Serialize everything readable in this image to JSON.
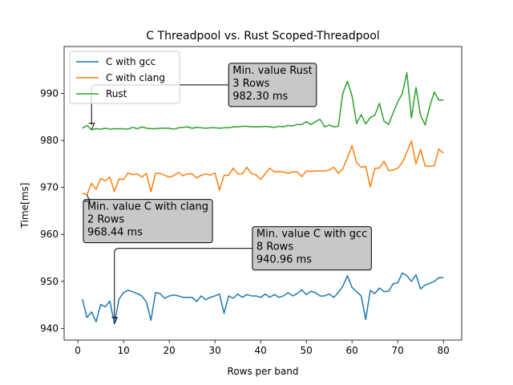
{
  "chart_data": {
    "type": "line",
    "title": "C Threadpool vs. Rust Scoped-Threadpool",
    "xlabel": "Rows per band",
    "ylabel": "Time[ms]",
    "xlim": [
      -3,
      84
    ],
    "ylim": [
      937.5,
      1000
    ],
    "xticks": [
      0,
      10,
      20,
      30,
      40,
      50,
      60,
      70,
      80
    ],
    "yticks": [
      940,
      950,
      960,
      970,
      980,
      990
    ],
    "legend_position": "upper-left",
    "grid": false,
    "series": [
      {
        "name": "C with gcc",
        "color": "#1f77b4",
        "x": [
          1,
          2,
          3,
          4,
          5,
          6,
          7,
          8,
          9,
          10,
          11,
          12,
          13,
          14,
          15,
          16,
          17,
          18,
          19,
          20,
          21,
          22,
          23,
          24,
          25,
          26,
          27,
          28,
          29,
          30,
          31,
          32,
          33,
          34,
          35,
          36,
          37,
          38,
          39,
          40,
          41,
          42,
          43,
          44,
          45,
          46,
          47,
          48,
          49,
          50,
          51,
          52,
          53,
          54,
          55,
          56,
          57,
          58,
          59,
          60,
          61,
          62,
          63,
          64,
          65,
          66,
          67,
          68,
          69,
          70,
          71,
          72,
          73,
          74,
          75,
          76,
          77,
          78,
          79,
          80
        ],
        "values": [
          946.2,
          942.3,
          943.5,
          941.4,
          945.1,
          944.6,
          945.8,
          940.96,
          946.2,
          947.6,
          948.1,
          947.8,
          947.4,
          946.9,
          945.6,
          941.7,
          947.6,
          947.4,
          946.4,
          946.9,
          947.1,
          946.9,
          946.6,
          946.6,
          946.6,
          945.7,
          946.9,
          946.1,
          946.6,
          946.9,
          947.3,
          943.2,
          946.9,
          946.4,
          947.3,
          946.6,
          947.2,
          946.9,
          946.9,
          946.6,
          947.3,
          946.6,
          947.2,
          946.6,
          946.9,
          947.6,
          946.9,
          947.4,
          948.2,
          947.2,
          947.9,
          947.6,
          946.9,
          946.9,
          947.3,
          946.6,
          947.6,
          949.0,
          951.2,
          948.7,
          947.8,
          946.9,
          941.9,
          948.1,
          947.4,
          948.6,
          947.8,
          947.9,
          949.5,
          949.7,
          951.8,
          951.2,
          950.0,
          951.4,
          948.4,
          949.2,
          949.6,
          950.0,
          950.8,
          950.8
        ],
        "min_x": 8,
        "min_value": 940.96
      },
      {
        "name": "C with clang",
        "color": "#ff7f0e",
        "x": [
          1,
          2,
          3,
          4,
          5,
          6,
          7,
          8,
          9,
          10,
          11,
          12,
          13,
          14,
          15,
          16,
          17,
          18,
          19,
          20,
          21,
          22,
          23,
          24,
          25,
          26,
          27,
          28,
          29,
          30,
          31,
          32,
          33,
          34,
          35,
          36,
          37,
          38,
          39,
          40,
          41,
          42,
          43,
          44,
          45,
          46,
          47,
          48,
          49,
          50,
          51,
          52,
          53,
          54,
          55,
          56,
          57,
          58,
          59,
          60,
          61,
          62,
          63,
          64,
          65,
          66,
          67,
          68,
          69,
          70,
          71,
          72,
          73,
          74,
          75,
          76,
          77,
          78,
          79,
          80
        ],
        "values": [
          968.8,
          968.44,
          970.9,
          969.6,
          971.9,
          971.4,
          972.2,
          969.1,
          971.8,
          971.7,
          973.1,
          972.7,
          972.9,
          972.2,
          973.0,
          969.1,
          973.0,
          973.0,
          972.6,
          972.2,
          972.5,
          973.2,
          972.5,
          972.9,
          972.9,
          972.0,
          972.6,
          972.9,
          972.6,
          973.1,
          969.4,
          972.6,
          972.6,
          974.1,
          972.9,
          972.9,
          974.3,
          972.9,
          972.7,
          971.7,
          972.9,
          974.1,
          973.3,
          973.4,
          973.3,
          973.0,
          973.3,
          973.3,
          972.3,
          973.5,
          973.4,
          973.5,
          973.5,
          973.5,
          973.7,
          974.3,
          973.0,
          974.0,
          976.3,
          978.9,
          975.3,
          974.3,
          974.5,
          970.1,
          974.1,
          974.1,
          975.6,
          973.6,
          973.7,
          974.1,
          975.3,
          977.5,
          979.9,
          975.0,
          978.1,
          974.6,
          974.5,
          974.6,
          978.2,
          977.3
        ],
        "min_x": 2,
        "min_value": 968.44
      },
      {
        "name": "Rust",
        "color": "#2ca02c",
        "x": [
          1,
          2,
          3,
          4,
          5,
          6,
          7,
          8,
          9,
          10,
          11,
          12,
          13,
          14,
          15,
          16,
          17,
          18,
          19,
          20,
          21,
          22,
          23,
          24,
          25,
          26,
          27,
          28,
          29,
          30,
          31,
          32,
          33,
          34,
          35,
          36,
          37,
          38,
          39,
          40,
          41,
          42,
          43,
          44,
          45,
          46,
          47,
          48,
          49,
          50,
          51,
          52,
          53,
          54,
          55,
          56,
          57,
          58,
          59,
          60,
          61,
          62,
          63,
          64,
          65,
          66,
          67,
          68,
          69,
          70,
          71,
          72,
          73,
          74,
          75,
          76,
          77,
          78,
          79,
          80
        ],
        "values": [
          982.6,
          983.2,
          982.3,
          982.5,
          982.4,
          982.6,
          982.4,
          982.5,
          982.5,
          982.5,
          982.4,
          982.8,
          982.5,
          982.9,
          982.6,
          982.5,
          982.5,
          982.6,
          982.6,
          982.6,
          982.4,
          982.7,
          982.8,
          982.9,
          982.6,
          982.8,
          982.7,
          982.6,
          982.7,
          982.7,
          982.6,
          982.7,
          982.7,
          982.9,
          982.9,
          983.0,
          983.0,
          982.9,
          982.9,
          982.9,
          983.0,
          982.9,
          982.8,
          983.0,
          982.9,
          983.2,
          983.1,
          983.4,
          983.4,
          984.0,
          983.4,
          984.0,
          984.5,
          982.9,
          983.3,
          982.9,
          983.0,
          990.1,
          992.6,
          989.5,
          983.6,
          985.5,
          983.5,
          984.9,
          985.4,
          987.9,
          984.1,
          983.4,
          985.9,
          988.2,
          990.0,
          994.4,
          984.8,
          991.3,
          985.3,
          983.3,
          987.2,
          990.3,
          988.6,
          988.6
        ],
        "min_x": 3,
        "min_value": 982.3
      }
    ],
    "annotations": [
      {
        "lines": [
          "Min. value Rust",
          "3 Rows",
          "982.30 ms"
        ],
        "point": [
          3,
          982.3
        ],
        "text_at": [
          33,
          987.9
        ]
      },
      {
        "lines": [
          "Min. value C with clang",
          "2 Rows",
          "968.44 ms"
        ],
        "point": [
          2,
          968.44
        ],
        "text_at": [
          1.2,
          958.9
        ]
      },
      {
        "lines": [
          "Min. value C with gcc",
          "8 Rows",
          "940.96 ms"
        ],
        "point": [
          8,
          940.96
        ],
        "text_at": [
          38.2,
          953.1
        ]
      }
    ]
  }
}
